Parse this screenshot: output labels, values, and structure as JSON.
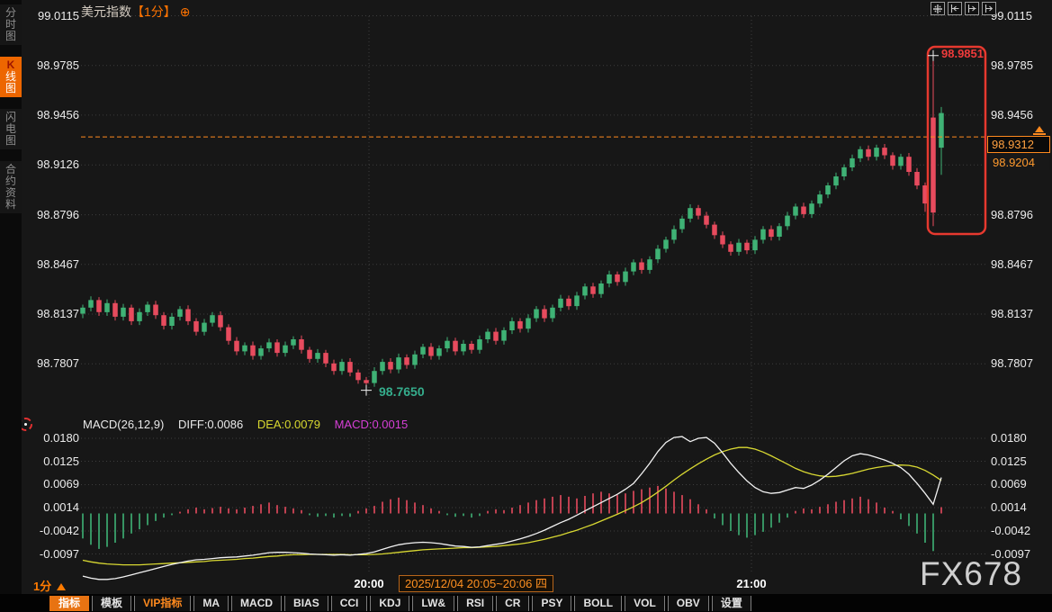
{
  "colors": {
    "up": "#3fb275",
    "down": "#e84b5e",
    "orange": "#ff8a1e",
    "accent": "#ff7300",
    "diff_line": "#f2f2f2",
    "dea_line": "#d8d832",
    "macd_text": "#d63fd6",
    "grid": "#3d3d3d",
    "highlight_box": "#e6392f"
  },
  "sidebar": {
    "items": [
      {
        "label": "分时图",
        "active": false
      },
      {
        "label": "K线图",
        "active": true,
        "accent_first_char": true
      },
      {
        "label": "闪电图",
        "active": false
      },
      {
        "label": "合约资料",
        "active": false
      }
    ]
  },
  "header": {
    "title": "美元指数",
    "interval_tag": "【1分】",
    "plus_icon": "⊕"
  },
  "tool_icons": [
    "crosshair",
    "scale-left",
    "scale-right",
    "pan-right"
  ],
  "footer": {
    "interval_label": "1分",
    "time_label_1": "20:00",
    "time_label_2": "21:00",
    "range_label": "2025/12/04 20:05~20:06 四"
  },
  "tabs": [
    {
      "label": "指标",
      "active": true
    },
    {
      "label": "模板"
    },
    {
      "label": "VIP指标",
      "vip": true
    },
    {
      "label": "MA"
    },
    {
      "label": "MACD"
    },
    {
      "label": "BIAS"
    },
    {
      "label": "CCI"
    },
    {
      "label": "KDJ"
    },
    {
      "label": "LW&"
    },
    {
      "label": "RSI"
    },
    {
      "label": "CR"
    },
    {
      "label": "PSY"
    },
    {
      "label": "BOLL"
    },
    {
      "label": "VOL"
    },
    {
      "label": "OBV"
    },
    {
      "label": "设置"
    }
  ],
  "watermark": {
    "text": "FX678"
  },
  "chart_data": [
    {
      "type": "candlestick",
      "title": "美元指数【1分】",
      "interval": "1分",
      "y_ticks": [
        "99.0115",
        "98.9785",
        "98.9456",
        "98.9126",
        "98.8796",
        "98.8467",
        "98.8137",
        "98.7807"
      ],
      "y_ticks_right": [
        "99.0115",
        "98.9785",
        "98.9456",
        "98.8796",
        "98.8467",
        "98.8137",
        "98.7807"
      ],
      "x_labels": [
        "20:00",
        "21:00"
      ],
      "price_line": {
        "value": 98.9312,
        "label": "98.9312"
      },
      "prev_label": "98.9204",
      "high_marker": {
        "value": 98.9851,
        "label": "98.9851"
      },
      "low_marker": {
        "value": 98.765,
        "label": "98.7650"
      },
      "ylim": [
        98.757,
        99.0115
      ],
      "grid": "dotted",
      "candles": [
        [
          98.814,
          98.82,
          98.811,
          98.818
        ],
        [
          98.818,
          98.8255,
          98.8155,
          98.823
        ],
        [
          98.823,
          98.825,
          98.8125,
          98.815
        ],
        [
          98.815,
          98.8235,
          98.8125,
          98.821
        ],
        [
          98.821,
          98.823,
          98.8095,
          98.812
        ],
        [
          98.812,
          98.8205,
          98.8095,
          98.818
        ],
        [
          98.818,
          98.82,
          98.8065,
          98.809
        ],
        [
          98.809,
          98.8175,
          98.8065,
          98.815
        ],
        [
          98.815,
          98.822,
          98.8125,
          98.82
        ],
        [
          98.82,
          98.8225,
          98.8105,
          98.813
        ],
        [
          98.813,
          98.815,
          98.8035,
          98.806
        ],
        [
          98.806,
          98.8145,
          98.8035,
          98.812
        ],
        [
          98.812,
          98.819,
          98.8095,
          98.817
        ],
        [
          98.817,
          98.8195,
          98.8065,
          98.809
        ],
        [
          98.809,
          98.811,
          98.7995,
          98.802
        ],
        [
          98.802,
          98.8105,
          98.7995,
          98.808
        ],
        [
          98.808,
          98.815,
          98.8055,
          98.813
        ],
        [
          98.813,
          98.8155,
          98.8025,
          98.805
        ],
        [
          98.805,
          98.807,
          98.7935,
          98.796
        ],
        [
          98.796,
          98.7985,
          98.7865,
          98.789
        ],
        [
          98.789,
          98.795,
          98.7865,
          98.793
        ],
        [
          98.793,
          98.7955,
          98.7835,
          98.786
        ],
        [
          98.786,
          98.793,
          98.7835,
          98.791
        ],
        [
          98.791,
          98.7975,
          98.7885,
          98.795
        ],
        [
          98.795,
          98.797,
          98.7855,
          98.788
        ],
        [
          98.788,
          98.7955,
          98.7855,
          98.793
        ],
        [
          98.793,
          98.799,
          98.7905,
          98.797
        ],
        [
          98.797,
          98.7995,
          98.7875,
          98.79
        ],
        [
          98.79,
          98.792,
          98.7815,
          98.784
        ],
        [
          98.784,
          98.7905,
          98.7815,
          98.788
        ],
        [
          98.788,
          98.79,
          98.7785,
          98.781
        ],
        [
          98.781,
          98.7835,
          98.7735,
          98.776
        ],
        [
          98.776,
          98.784,
          98.7735,
          98.782
        ],
        [
          98.782,
          98.7845,
          98.7725,
          98.775
        ],
        [
          98.775,
          98.777,
          98.7675,
          98.77
        ],
        [
          98.77,
          98.772,
          98.765,
          98.768
        ],
        [
          98.768,
          98.7785,
          98.7655,
          98.776
        ],
        [
          98.776,
          98.784,
          98.7735,
          98.782
        ],
        [
          98.782,
          98.7845,
          98.7745,
          98.777
        ],
        [
          98.777,
          98.7875,
          98.7745,
          98.785
        ],
        [
          98.785,
          98.787,
          98.7775,
          98.78
        ],
        [
          98.78,
          98.7895,
          98.7775,
          98.787
        ],
        [
          98.787,
          98.794,
          98.7845,
          98.792
        ],
        [
          98.792,
          98.7945,
          98.7835,
          98.786
        ],
        [
          98.786,
          98.793,
          98.7835,
          98.791
        ],
        [
          98.791,
          98.7985,
          98.7885,
          98.796
        ],
        [
          98.796,
          98.798,
          98.7865,
          98.789
        ],
        [
          98.789,
          98.7965,
          98.7865,
          98.794
        ],
        [
          98.794,
          98.796,
          98.7875,
          98.79
        ],
        [
          98.79,
          98.7995,
          98.7875,
          98.797
        ],
        [
          98.797,
          98.804,
          98.7945,
          98.802
        ],
        [
          98.802,
          98.8045,
          98.7935,
          98.796
        ],
        [
          98.796,
          98.805,
          98.7935,
          98.803
        ],
        [
          98.803,
          98.8115,
          98.8005,
          98.809
        ],
        [
          98.809,
          98.811,
          98.8015,
          98.804
        ],
        [
          98.804,
          98.8135,
          98.8015,
          98.811
        ],
        [
          98.811,
          98.819,
          98.8085,
          98.817
        ],
        [
          98.817,
          98.8195,
          98.8085,
          98.811
        ],
        [
          98.811,
          98.82,
          98.8085,
          98.818
        ],
        [
          98.818,
          98.8265,
          98.8155,
          98.824
        ],
        [
          98.824,
          98.826,
          98.8165,
          98.819
        ],
        [
          98.819,
          98.8285,
          98.8165,
          98.826
        ],
        [
          98.826,
          98.834,
          98.8235,
          98.832
        ],
        [
          98.832,
          98.8345,
          98.8245,
          98.827
        ],
        [
          98.827,
          98.836,
          98.8245,
          98.834
        ],
        [
          98.834,
          98.8425,
          98.8315,
          98.84
        ],
        [
          98.84,
          98.842,
          98.8325,
          98.835
        ],
        [
          98.835,
          98.8445,
          98.8325,
          98.842
        ],
        [
          98.842,
          98.85,
          98.8395,
          98.848
        ],
        [
          98.848,
          98.8505,
          98.8405,
          98.843
        ],
        [
          98.843,
          98.852,
          98.8405,
          98.85
        ],
        [
          98.85,
          98.8595,
          98.8475,
          98.857
        ],
        [
          98.857,
          98.865,
          98.8545,
          98.863
        ],
        [
          98.863,
          98.8725,
          98.8605,
          98.87
        ],
        [
          98.87,
          98.879,
          98.8675,
          98.877
        ],
        [
          98.877,
          98.8865,
          98.8745,
          98.884
        ],
        [
          98.884,
          98.886,
          98.8765,
          98.879
        ],
        [
          98.879,
          98.8815,
          98.8705,
          98.873
        ],
        [
          98.873,
          98.875,
          98.8635,
          98.866
        ],
        [
          98.866,
          98.8685,
          98.8575,
          98.86
        ],
        [
          98.86,
          98.862,
          98.8525,
          98.855
        ],
        [
          98.855,
          98.8635,
          98.8525,
          98.861
        ],
        [
          98.861,
          98.863,
          98.8535,
          98.856
        ],
        [
          98.856,
          98.8655,
          98.8535,
          98.863
        ],
        [
          98.863,
          98.872,
          98.8605,
          98.87
        ],
        [
          98.87,
          98.8725,
          98.8625,
          98.865
        ],
        [
          98.865,
          98.874,
          98.8625,
          98.872
        ],
        [
          98.872,
          98.8815,
          98.8695,
          98.879
        ],
        [
          98.879,
          98.887,
          98.8765,
          98.885
        ],
        [
          98.885,
          98.8875,
          98.8775,
          98.88
        ],
        [
          98.88,
          98.889,
          98.8775,
          98.887
        ],
        [
          98.887,
          98.8955,
          98.8845,
          98.893
        ],
        [
          98.893,
          98.901,
          98.8905,
          98.899
        ],
        [
          98.899,
          98.9075,
          98.8965,
          98.905
        ],
        [
          98.905,
          98.913,
          98.9025,
          98.911
        ],
        [
          98.911,
          98.9195,
          98.9085,
          98.917
        ],
        [
          98.917,
          98.925,
          98.9145,
          98.923
        ],
        [
          98.923,
          98.9255,
          98.9155,
          98.918
        ],
        [
          98.918,
          98.926,
          98.9155,
          98.924
        ],
        [
          98.924,
          98.9265,
          98.9165,
          98.919
        ],
        [
          98.919,
          98.921,
          98.9095,
          98.912
        ],
        [
          98.912,
          98.92,
          98.9095,
          98.918
        ],
        [
          98.918,
          98.9205,
          98.9055,
          98.908
        ],
        [
          98.908,
          98.9105,
          98.8965,
          98.899
        ],
        [
          98.899,
          98.901,
          98.8815,
          98.887
        ],
        [
          98.944,
          98.9851,
          98.872,
          98.881
        ],
        [
          98.924,
          98.951,
          98.906,
          98.947
        ]
      ]
    },
    {
      "type": "macd",
      "label": "MACD(26,12,9)",
      "diff_label": "DIFF:0.0086",
      "dea_label": "DEA:0.0079",
      "macd_label": "MACD:0.0015",
      "diff_value": 0.0086,
      "dea_value": 0.0079,
      "macd_value": 0.0015,
      "y_ticks": [
        "0.0180",
        "0.0125",
        "0.0069",
        "0.0014",
        "-0.0042",
        "-0.0097"
      ],
      "hist": [
        -0.006,
        -0.0075,
        -0.0085,
        -0.008,
        -0.007,
        -0.006,
        -0.0048,
        -0.0038,
        -0.0028,
        -0.0018,
        -0.001,
        -0.0004,
        0.0004,
        0.001,
        0.0014,
        0.001,
        0.0013,
        0.0016,
        0.0012,
        0.001,
        0.0014,
        0.0018,
        0.0022,
        0.0026,
        0.002,
        0.0016,
        0.0012,
        0.0008,
        -0.0004,
        -0.0008,
        -0.0006,
        -0.001,
        -0.0006,
        -0.0008,
        0.0006,
        0.0012,
        0.0018,
        0.0028,
        0.0034,
        0.0038,
        0.0032,
        0.0026,
        0.002,
        0.0012,
        0.0006,
        -0.0004,
        -0.0008,
        -0.0006,
        -0.001,
        -0.0006,
        0.0006,
        0.001,
        0.0008,
        0.0014,
        0.002,
        0.0026,
        0.0032,
        0.0036,
        0.004,
        0.0044,
        0.004,
        0.0036,
        0.0042,
        0.0048,
        0.0052,
        0.0048,
        0.0044,
        0.0048,
        0.0054,
        0.0058,
        0.0062,
        0.0066,
        0.006,
        0.0052,
        0.0044,
        0.0034,
        0.0022,
        0.001,
        -0.0012,
        -0.0028,
        -0.0042,
        -0.0052,
        -0.0058,
        -0.0052,
        -0.0044,
        -0.0034,
        -0.0022,
        -0.001,
        0.0006,
        0.0012,
        0.001,
        0.0016,
        0.0022,
        0.0028,
        0.0032,
        0.0036,
        0.004,
        0.0034,
        0.0026,
        0.0014,
        0.0006,
        -0.0014,
        -0.003,
        -0.0048,
        -0.007,
        -0.009,
        0.0015
      ],
      "diff": [
        -0.015,
        -0.0155,
        -0.0158,
        -0.0158,
        -0.0156,
        -0.0152,
        -0.0147,
        -0.0142,
        -0.0137,
        -0.0132,
        -0.0127,
        -0.0122,
        -0.0118,
        -0.0114,
        -0.0111,
        -0.011,
        -0.0108,
        -0.0106,
        -0.0105,
        -0.0104,
        -0.0102,
        -0.01,
        -0.0097,
        -0.0094,
        -0.0093,
        -0.0093,
        -0.0094,
        -0.0095,
        -0.0097,
        -0.0098,
        -0.0099,
        -0.01,
        -0.0099,
        -0.01,
        -0.0098,
        -0.0096,
        -0.0092,
        -0.0086,
        -0.008,
        -0.0075,
        -0.0072,
        -0.007,
        -0.0069,
        -0.007,
        -0.0072,
        -0.0075,
        -0.0078,
        -0.0079,
        -0.0081,
        -0.008,
        -0.0077,
        -0.0074,
        -0.0071,
        -0.0066,
        -0.0061,
        -0.0055,
        -0.0048,
        -0.004,
        -0.0031,
        -0.0022,
        -0.0014,
        -0.0004,
        0.0006,
        0.0016,
        0.0026,
        0.0036,
        0.0046,
        0.0058,
        0.0072,
        0.0095,
        0.012,
        0.0148,
        0.017,
        0.0182,
        0.0184,
        0.0172,
        0.018,
        0.0182,
        0.0168,
        0.0145,
        0.012,
        0.0098,
        0.0078,
        0.0062,
        0.0052,
        0.0048,
        0.005,
        0.0056,
        0.0062,
        0.006,
        0.0068,
        0.008,
        0.0094,
        0.011,
        0.0126,
        0.0138,
        0.0143,
        0.014,
        0.0134,
        0.0128,
        0.012,
        0.011,
        0.0094,
        0.0072,
        0.0048,
        0.0022,
        0.0086
      ],
      "dea": [
        -0.0112,
        -0.0116,
        -0.0119,
        -0.0121,
        -0.0122,
        -0.0123,
        -0.0123,
        -0.0123,
        -0.0122,
        -0.0121,
        -0.012,
        -0.0119,
        -0.0118,
        -0.0117,
        -0.0116,
        -0.0115,
        -0.0113,
        -0.0112,
        -0.0111,
        -0.011,
        -0.0108,
        -0.0107,
        -0.0105,
        -0.0103,
        -0.0102,
        -0.01,
        -0.0099,
        -0.0099,
        -0.0098,
        -0.0098,
        -0.0098,
        -0.0098,
        -0.0098,
        -0.0099,
        -0.0099,
        -0.0099,
        -0.0098,
        -0.0097,
        -0.0095,
        -0.0093,
        -0.0091,
        -0.0089,
        -0.0087,
        -0.0086,
        -0.0085,
        -0.0084,
        -0.0083,
        -0.0082,
        -0.0082,
        -0.0081,
        -0.008,
        -0.0079,
        -0.0077,
        -0.0075,
        -0.0073,
        -0.007,
        -0.0066,
        -0.0062,
        -0.0057,
        -0.0052,
        -0.0046,
        -0.004,
        -0.0033,
        -0.0026,
        -0.0018,
        -0.001,
        -0.0002,
        0.0007,
        0.0016,
        0.0026,
        0.0038,
        0.0051,
        0.0065,
        0.008,
        0.0094,
        0.0107,
        0.0119,
        0.013,
        0.014,
        0.0148,
        0.0154,
        0.0158,
        0.0158,
        0.0154,
        0.0147,
        0.0138,
        0.0128,
        0.0118,
        0.0108,
        0.01,
        0.0094,
        0.009,
        0.0088,
        0.0089,
        0.0092,
        0.0096,
        0.0101,
        0.0106,
        0.011,
        0.0113,
        0.0115,
        0.0116,
        0.0115,
        0.0111,
        0.0103,
        0.0092,
        0.0079
      ]
    }
  ]
}
